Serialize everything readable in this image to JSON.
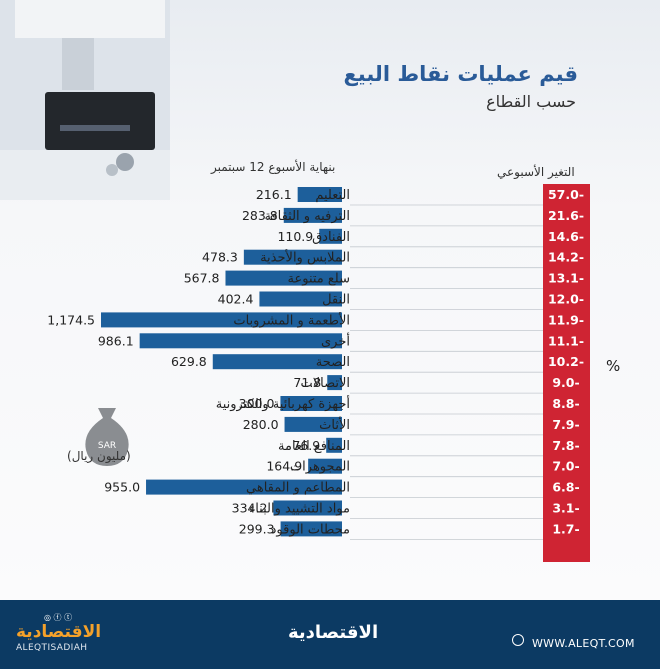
{
  "header": {
    "title": "قيم عمليات نقاط البيع",
    "subtitle": "حسب القطاع",
    "week_label": "بنهاية الأسبوع  12 سبتمبر",
    "change_label": "التغير الأسبوعي",
    "percent_symbol": "%",
    "unit_label": "(مليون ريال)",
    "currency_tag": "SAR"
  },
  "footer": {
    "logo_text": "الاقتصادية",
    "url": "WWW.ALEQT.COM",
    "brand_text": "الاقتصادية",
    "brand_latin": "ALEQTISADIAH",
    "social_icons": [
      "instagram-icon",
      "facebook-icon",
      "twitter-icon"
    ]
  },
  "colors": {
    "bar": "#1d5f9b",
    "change_strip": "#cf2433",
    "footer": "#0c3a63",
    "title": "#2a5b98"
  },
  "chart_data": {
    "type": "bar",
    "orientation": "horizontal",
    "title": "قيم عمليات نقاط البيع",
    "subtitle": "حسب القطاع",
    "categories": [
      "التعليم",
      "الترفيه و الثقافة",
      "الفنادق",
      "الملابس والأحذية",
      "سلع متنوعة",
      "النقل",
      "الأطعمة و المشروبات",
      "أخرى",
      "الصحة",
      "الاتصالات",
      "أجهزة كهربائية والكترونية",
      "الأثاث",
      "المنافع العامة",
      "المجوهرات",
      "المطاعم و المقاهي",
      "مواد التشييد والبناء",
      "محطات الوقود"
    ],
    "values": [
      216.1,
      283.8,
      110.9,
      478.3,
      567.8,
      402.4,
      1174.5,
      986.1,
      629.8,
      71.8,
      300.0,
      280.0,
      76.9,
      164.9,
      955.0,
      334.2,
      299.3
    ],
    "value_labels": [
      "216.1",
      "283.8",
      "110.9",
      "478.3",
      "567.8",
      "402.4",
      "1,174.5",
      "986.1",
      "629.8",
      "71.8",
      "300.0",
      "280.0",
      "76.9",
      "164.9",
      "955.0",
      "334.2",
      "299.3"
    ],
    "weekly_change": [
      "57.0-",
      "21.6-",
      "14.6-",
      "14.2-",
      "13.1-",
      "12.0-",
      "11.9-",
      "11.1-",
      "10.2-",
      "9.0-",
      "8.8-",
      "7.9-",
      "7.8-",
      "7.0-",
      "6.8-",
      "3.1-",
      "1.7-"
    ],
    "value_unit": "مليون ريال",
    "xlim": [
      0,
      1174.5
    ],
    "grid": false
  }
}
